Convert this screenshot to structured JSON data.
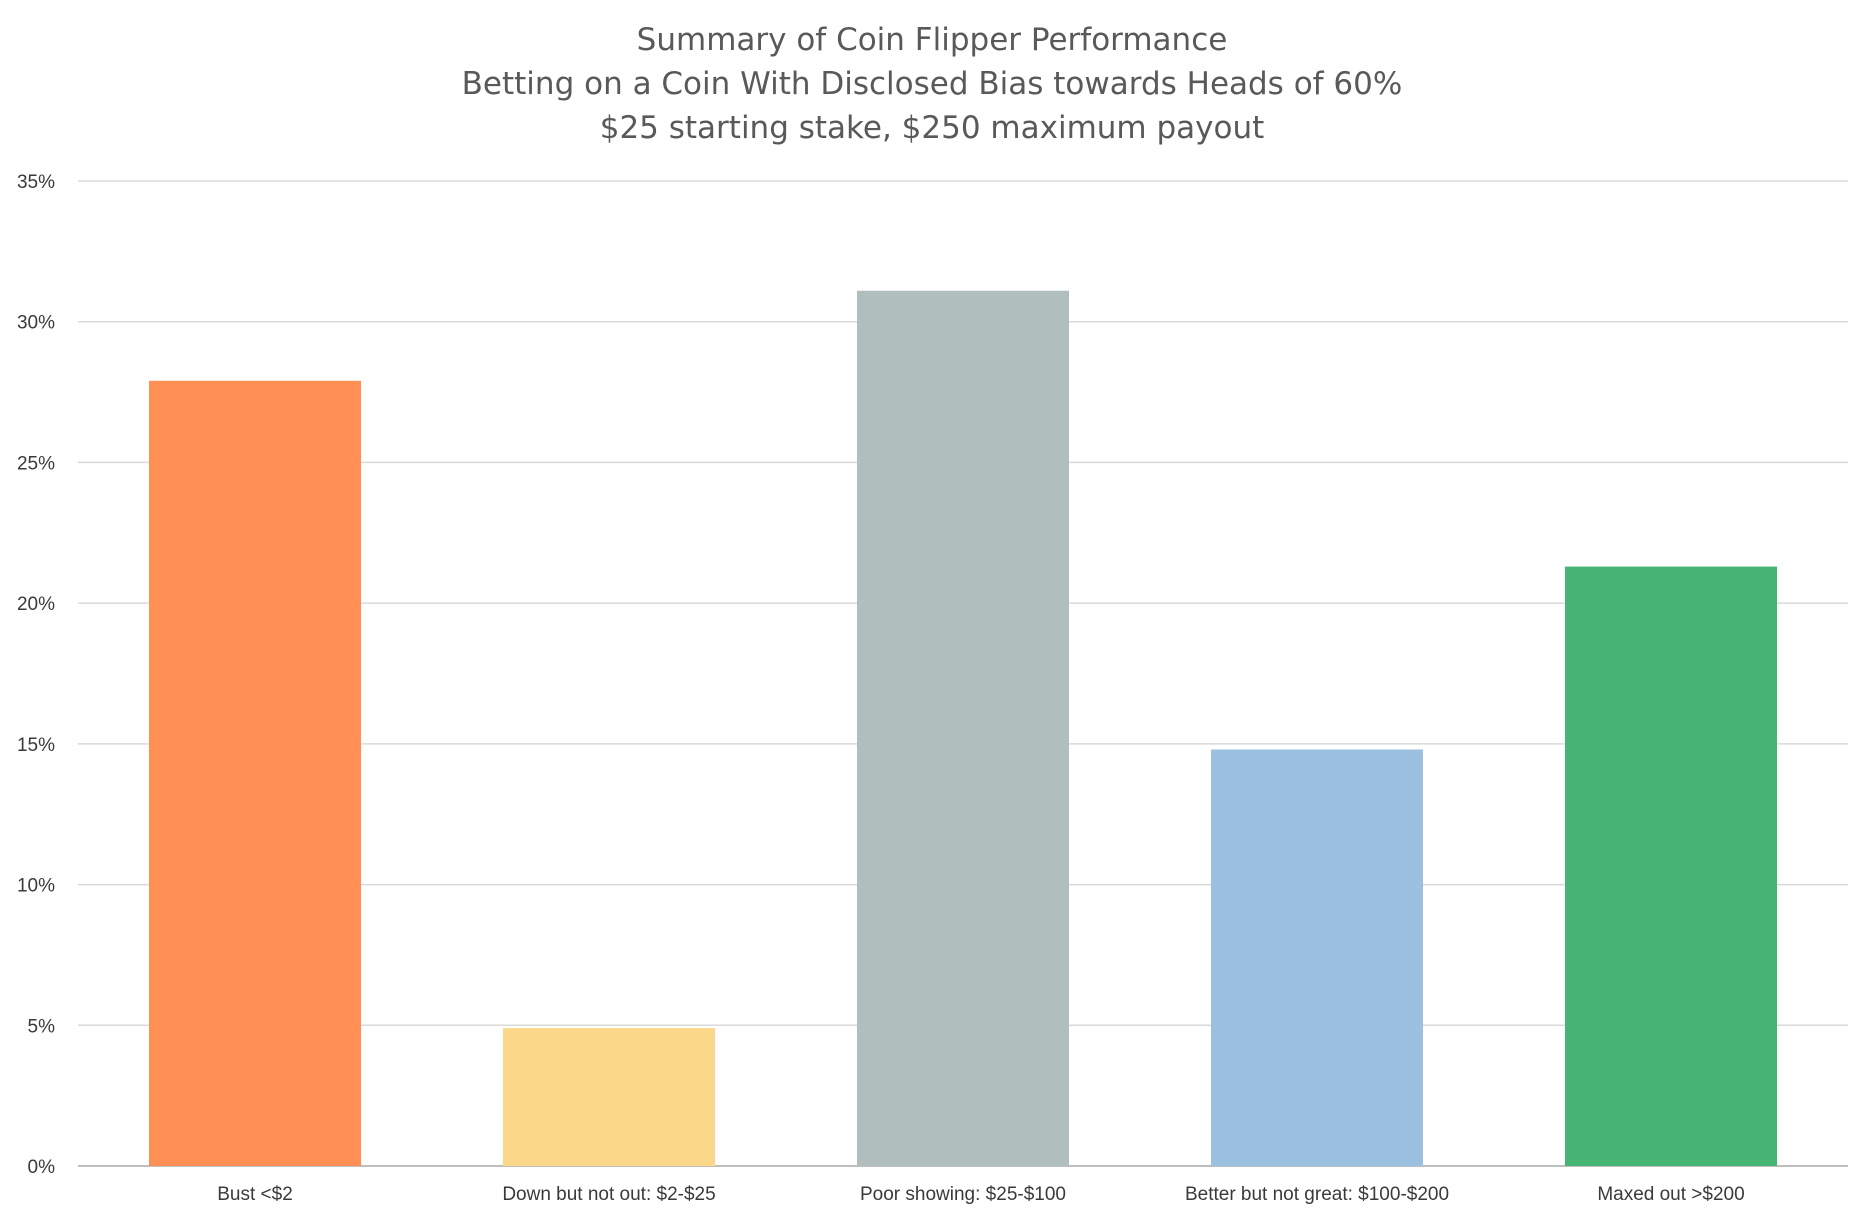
{
  "chart_data": {
    "type": "bar",
    "title": "Summary of Coin Flipper Performance",
    "subtitle": [
      "Betting on a Coin With Disclosed Bias towards Heads of 60%",
      "$25 starting stake, $250 maximum payout"
    ],
    "xlabel": "",
    "ylabel": "",
    "categories": [
      "Bust <$2",
      "Down but not out: $2-$25",
      "Poor showing: $25-$100",
      "Better but not great: $100-$200",
      "Maxed out >$200"
    ],
    "values": [
      0.279,
      0.049,
      0.311,
      0.148,
      0.213
    ],
    "colors": [
      "#ff8f55",
      "#fbd78a",
      "#b0bfbd",
      "#9cc0e0",
      "#45b475"
    ],
    "ylim": [
      0,
      0.35
    ],
    "yticks": [
      0,
      0.05,
      0.1,
      0.15,
      0.2,
      0.25,
      0.3,
      0.35
    ],
    "ytick_labels": [
      "0%",
      "5%",
      "10%",
      "15%",
      "20%",
      "25%",
      "30%",
      "35%"
    ],
    "grid": true,
    "legend": false,
    "grid_color": "#d9d9d9",
    "axis_color": "#bfbfbf"
  }
}
